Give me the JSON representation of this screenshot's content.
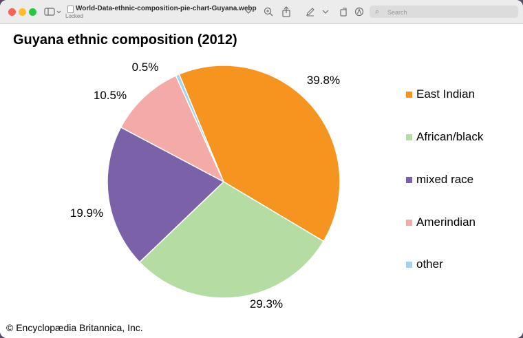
{
  "window": {
    "file_title": "World-Data-ethnic-composition-pie-chart-Guyana.webp",
    "file_status": "Locked",
    "search_placeholder": "Search"
  },
  "chart_data": {
    "type": "pie",
    "title": "Guyana ethnic composition (2012)",
    "slices": [
      {
        "name": "East Indian",
        "value": 39.8,
        "label": "39.8%",
        "color": "#f5941e"
      },
      {
        "name": "African/black",
        "value": 29.3,
        "label": "29.3%",
        "color": "#b5dca2"
      },
      {
        "name": "mixed race",
        "value": 19.9,
        "label": "19.9%",
        "color": "#7b62a8"
      },
      {
        "name": "Amerindian",
        "value": 10.5,
        "label": "10.5%",
        "color": "#f4aaa7"
      },
      {
        "name": "other",
        "value": 0.5,
        "label": "0.5%",
        "color": "#a6d3ea"
      }
    ],
    "legend_position": "right"
  },
  "footer": {
    "copyright": "© Encyclopædia Britannica, Inc."
  }
}
